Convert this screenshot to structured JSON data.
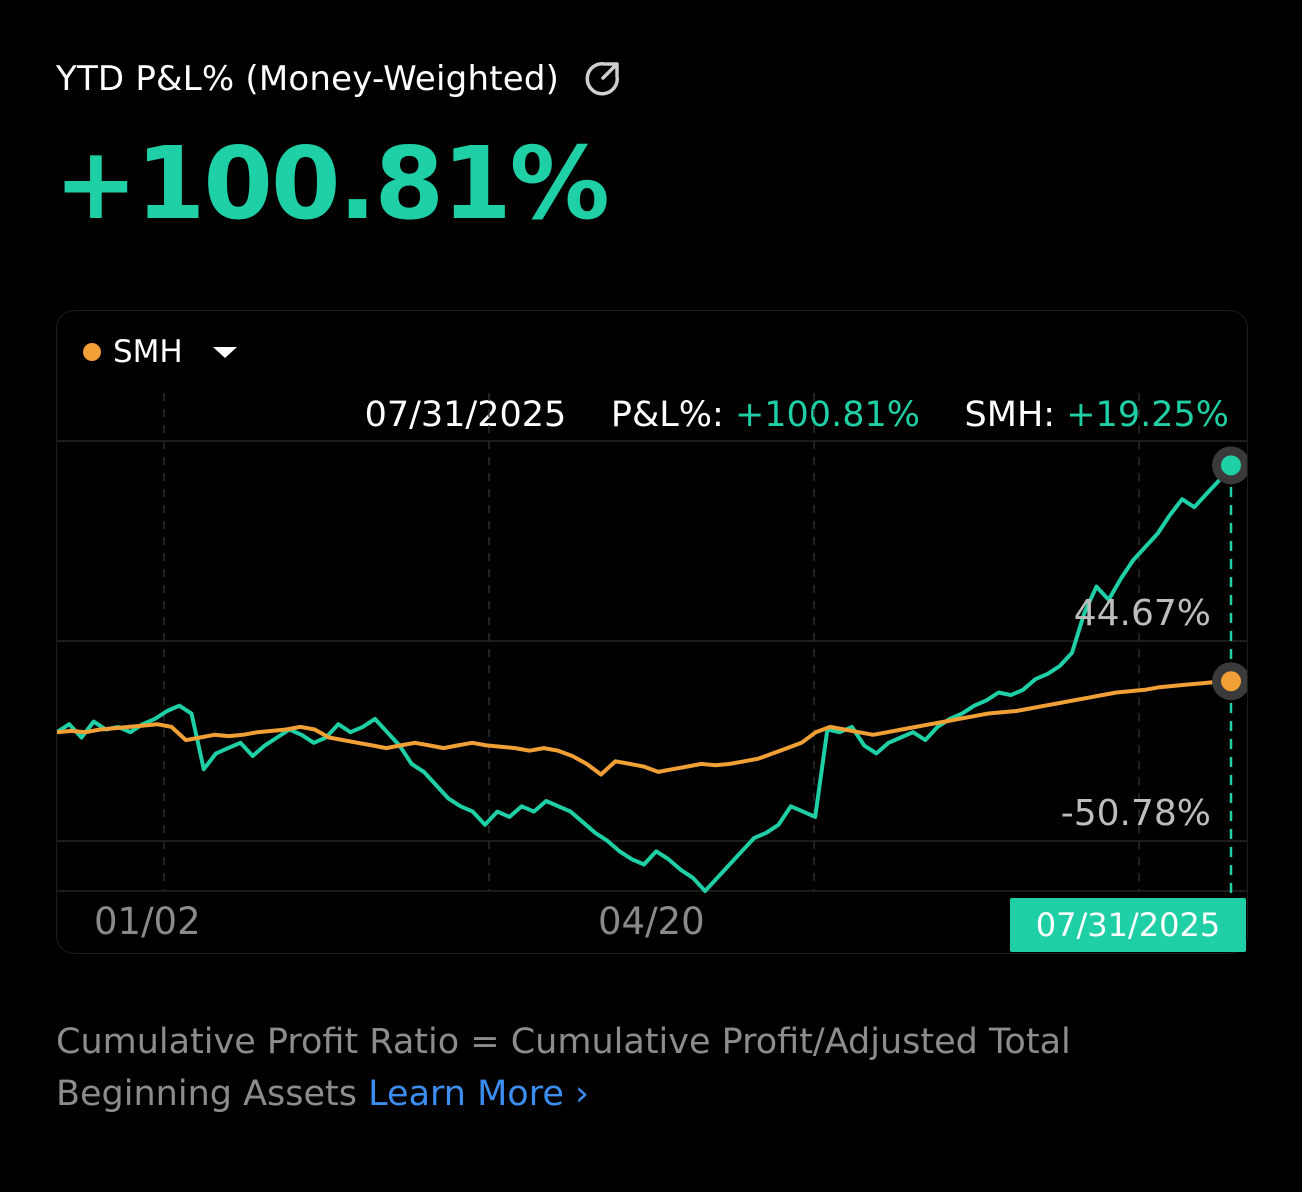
{
  "header": {
    "title": "YTD P&L% (Money-Weighted)",
    "share_icon": "share-arrow-icon",
    "value": "+100.81%"
  },
  "chart": {
    "benchmark": {
      "name": "SMH",
      "dot_color": "#f0a035",
      "dropdown_icon": "caret-down-icon"
    },
    "tooltip": {
      "date": "07/31/2025",
      "pl_label": "P&L%:",
      "pl_value": "+100.81%",
      "benchmark_label": "SMH:",
      "benchmark_value": "+19.25%"
    },
    "x_ticks": [
      "01/02",
      "04/20"
    ],
    "selected_date": "07/31/2025"
  },
  "chart_data": {
    "type": "line",
    "annotations": {
      "upper": "44.67%",
      "lower": "-50.78%"
    },
    "x_label_dates": [
      "01/02",
      "04/20",
      "07/31/2025"
    ],
    "ylim": [
      -60,
      110
    ],
    "series": [
      {
        "name": "P&L%",
        "color": "#1fcfa6",
        "values": [
          0,
          3,
          -2,
          4,
          1,
          2,
          0,
          3,
          5,
          8,
          10,
          7,
          -14,
          -8,
          -6,
          -4,
          -9,
          -5,
          -2,
          1,
          -1,
          -4,
          -2,
          3,
          0,
          2,
          5,
          0,
          -5,
          -12,
          -15,
          -20,
          -25,
          -28,
          -30,
          -35,
          -30,
          -32,
          -28,
          -30,
          -26,
          -28,
          -30,
          -34,
          -38,
          -41,
          -45,
          -48,
          -50,
          -45,
          -48,
          -52,
          -55,
          -60,
          -55,
          -50,
          -45,
          -40,
          -38,
          -35,
          -28,
          -30,
          -32,
          1,
          0,
          2,
          -5,
          -8,
          -4,
          -2,
          0,
          -3,
          2,
          5,
          7,
          10,
          12,
          15,
          14,
          16,
          20,
          22,
          25,
          30,
          45,
          55,
          50,
          58,
          65,
          70,
          75,
          82,
          88,
          85,
          90,
          95,
          100.81
        ]
      },
      {
        "name": "SMH",
        "color": "#f0a035",
        "values": [
          0,
          0.5,
          0,
          1,
          1.5,
          2,
          2.5,
          3,
          2,
          -3,
          -2,
          -1,
          -1.5,
          -1,
          0,
          0.5,
          1,
          2,
          1,
          -2,
          -3,
          -4,
          -5,
          -6,
          -5,
          -4,
          -5,
          -6,
          -5,
          -4,
          -5,
          -5.5,
          -6,
          -7,
          -6,
          -7,
          -9,
          -12,
          -16,
          -11,
          -12,
          -13,
          -15,
          -14,
          -13,
          -12,
          -12.5,
          -12,
          -11,
          -10,
          -8,
          -6,
          -4,
          0,
          2,
          1,
          0,
          -1,
          0,
          1,
          2,
          3,
          4,
          5,
          6,
          7,
          7.5,
          8,
          9,
          10,
          11,
          12,
          13,
          14,
          15,
          15.5,
          16,
          17,
          17.5,
          18,
          18.5,
          19,
          19.25
        ]
      }
    ],
    "grid": true
  },
  "footer": {
    "formula": "Cumulative Profit Ratio = Cumulative Profit/Adjusted Total Beginning Assets",
    "learn_more": "Learn More ›"
  }
}
